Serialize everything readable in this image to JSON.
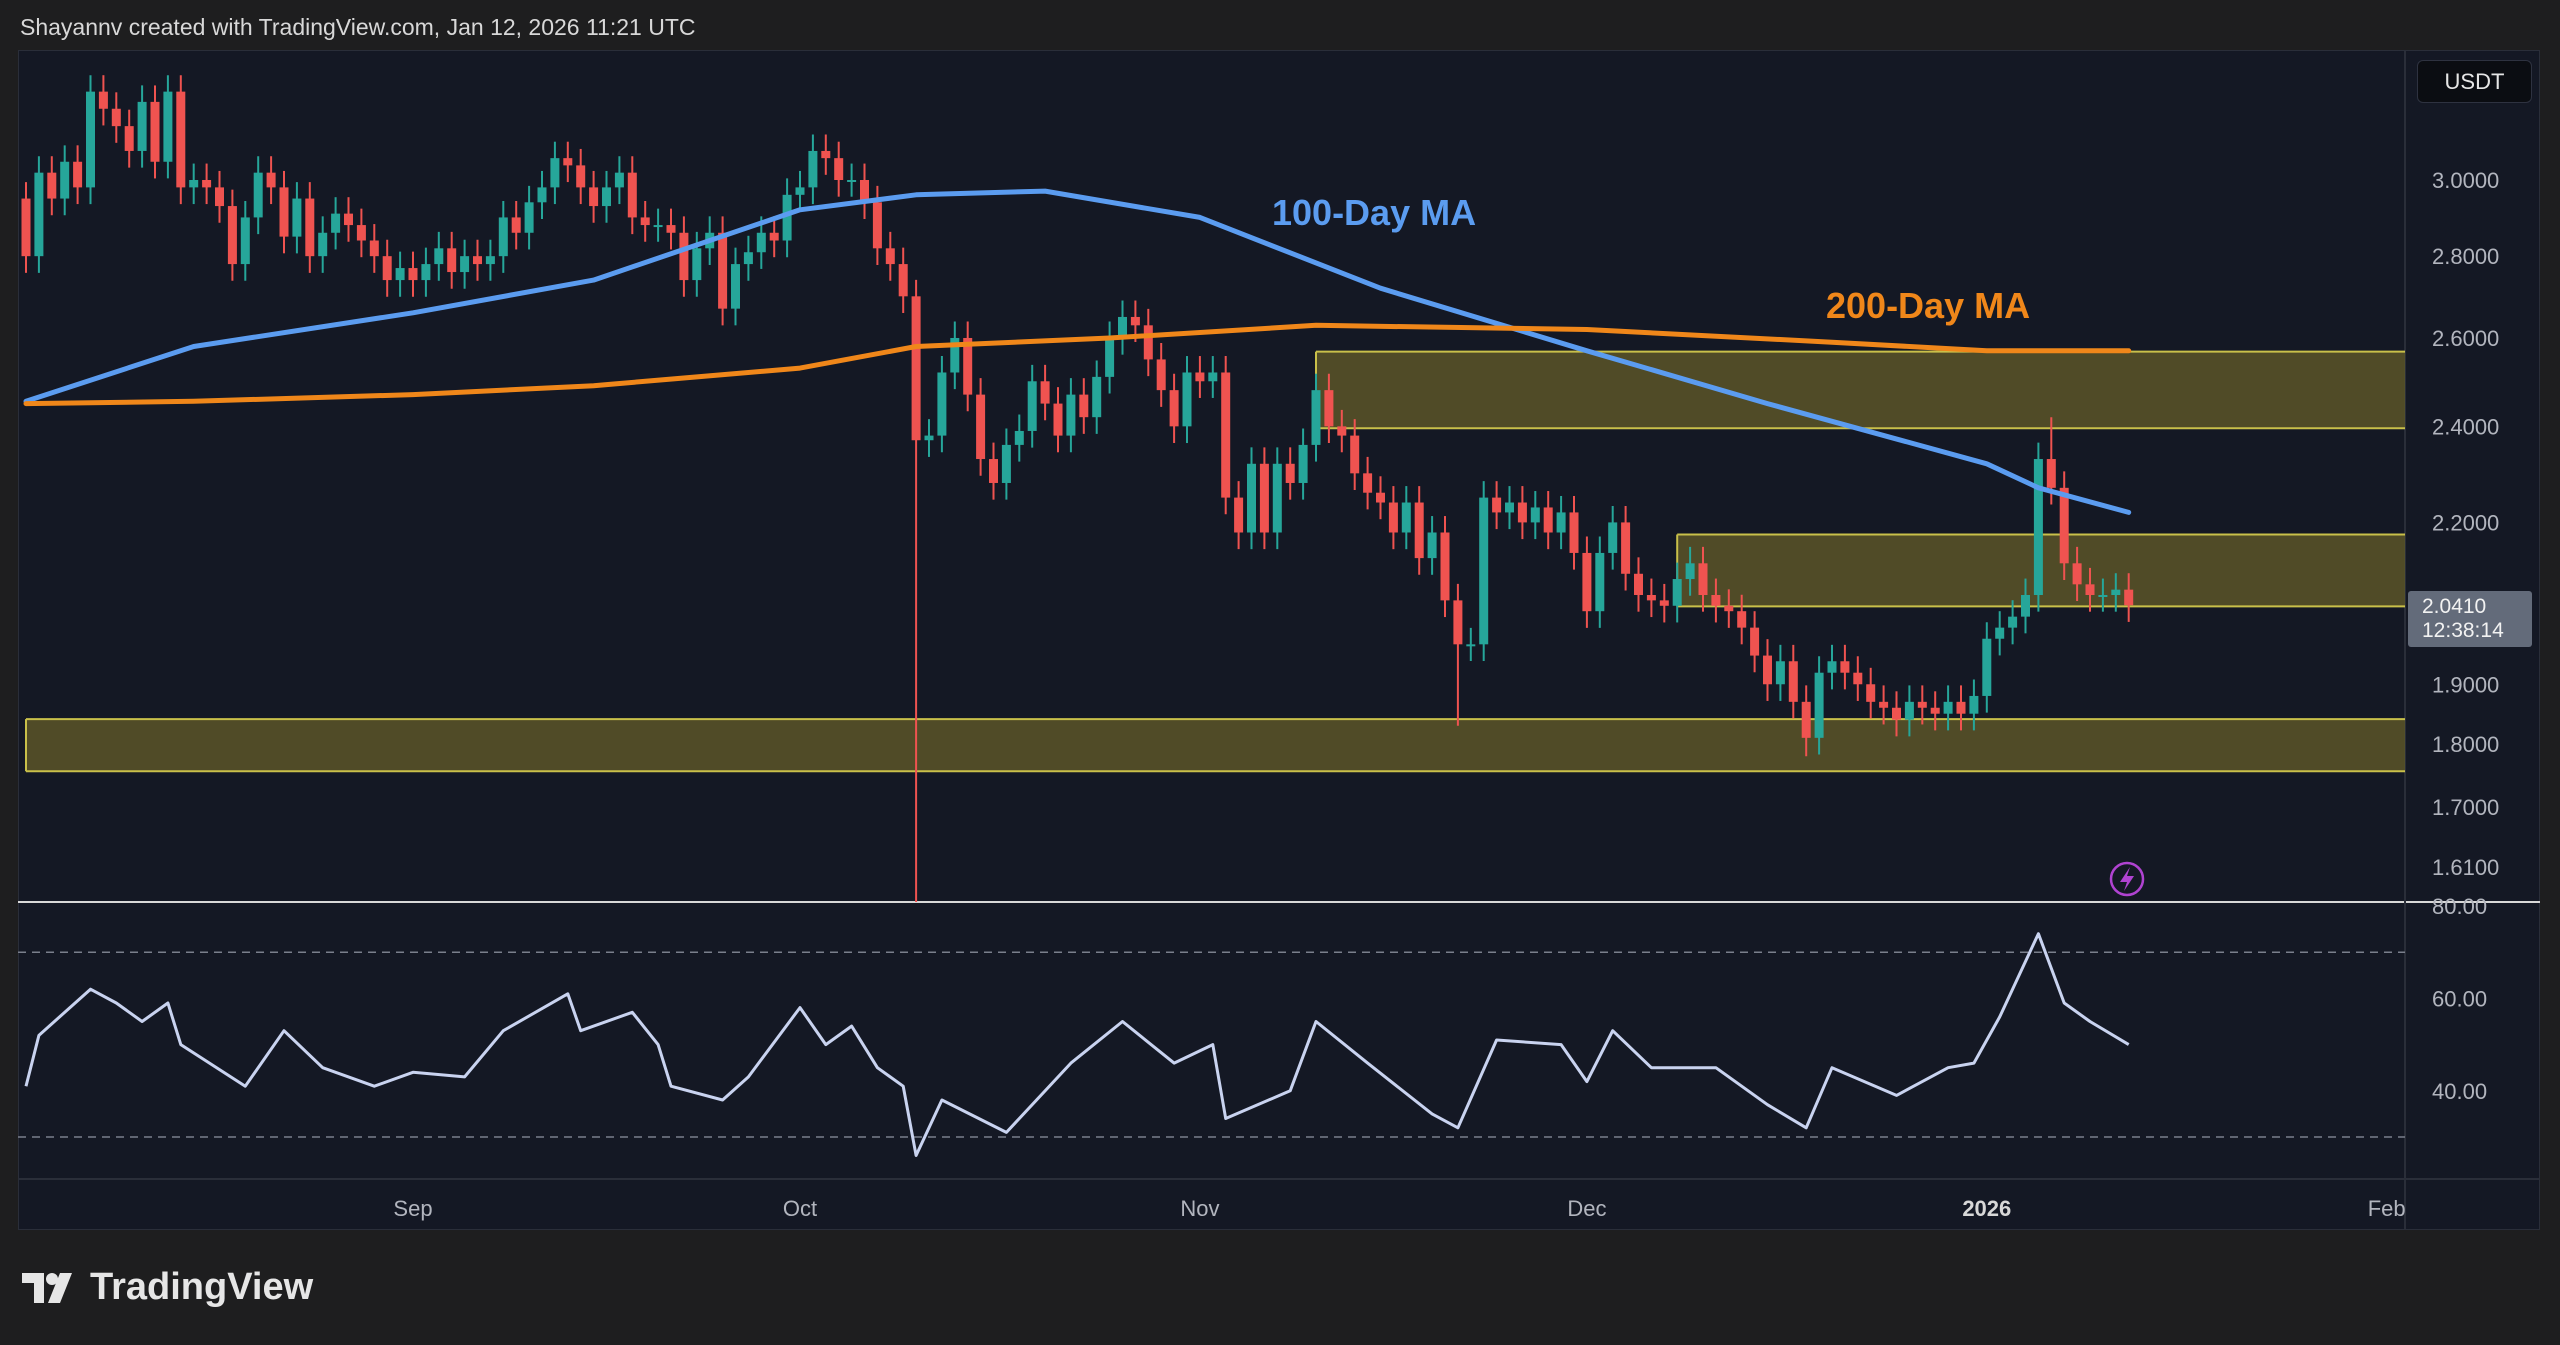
{
  "header": {
    "caption": "Shayannv created with TradingView.com, Jan 12, 2026 11:21 UTC"
  },
  "logo": {
    "text": "TradingView"
  },
  "price_axis": {
    "currency": "USDT",
    "ticks": [
      "3.0000",
      "2.8000",
      "2.6000",
      "2.4000",
      "2.2000",
      "1.9000",
      "1.8000",
      "1.7000",
      "1.6100"
    ],
    "current_price": "2.0410",
    "countdown": "12:38:14"
  },
  "rsi_axis": {
    "ticks": [
      "80.00",
      "60.00",
      "40.00"
    ]
  },
  "time_axis": {
    "ticks": [
      {
        "label": "Sep",
        "date": "2025-09-01"
      },
      {
        "label": "Oct",
        "date": "2025-10-01"
      },
      {
        "label": "Nov",
        "date": "2025-11-01"
      },
      {
        "label": "Dec",
        "date": "2025-12-01"
      },
      {
        "label": "2026",
        "date": "2026-01-01",
        "bold": true
      },
      {
        "label": "Feb",
        "date": "2026-02-01"
      }
    ]
  },
  "colors": {
    "up": "#26a69a",
    "down": "#ef5350",
    "ma100": "#5b9cf0",
    "ma200": "#f0871a",
    "zone_fill": "#5a5528",
    "zone_border": "#c9c04a",
    "rsi": "#c9d3f0",
    "background": "#141824"
  },
  "icons": {
    "alert": "lightning-icon"
  },
  "chart_data": [
    {
      "type": "candlestick",
      "scale": "log",
      "ylim": [
        1.55,
        3.35
      ],
      "months": [
        {
          "month": "2025-08",
          "first_day": 2,
          "first_open": 2.95,
          "closes": [
            2.8,
            3.02,
            2.95,
            3.05,
            2.98,
            3.25,
            3.2,
            3.15,
            3.08,
            3.22,
            3.05,
            3.25,
            2.98,
            3.0,
            2.98,
            2.93,
            2.78,
            2.9,
            3.02,
            2.98,
            2.85,
            2.95,
            2.8,
            2.86,
            2.91,
            2.88,
            2.84,
            2.8,
            2.74,
            2.77
          ]
        },
        {
          "month": "2025-09",
          "first_day": 1,
          "closes": [
            2.74,
            2.78,
            2.82,
            2.76,
            2.8,
            2.78,
            2.8,
            2.9,
            2.86,
            2.94,
            2.98,
            3.06,
            3.04,
            2.98,
            2.93,
            2.98,
            3.02,
            2.9,
            2.88,
            2.88,
            2.86,
            2.74,
            2.82,
            2.86,
            2.67,
            2.78,
            2.81,
            2.86,
            2.84,
            2.96
          ]
        },
        {
          "month": "2025-10",
          "first_day": 1,
          "closes": [
            2.98,
            3.08,
            3.06,
            3.0,
            3.0,
            2.94,
            2.82,
            2.78,
            2.7,
            2.37,
            2.38,
            2.52,
            2.6,
            2.47,
            2.33,
            2.28,
            2.36,
            2.39,
            2.5,
            2.45,
            2.38,
            2.47,
            2.42,
            2.51,
            2.6,
            2.65,
            2.63,
            2.55,
            2.48,
            2.4,
            2.52
          ]
        },
        {
          "month": "2025-11",
          "first_day": 1,
          "closes": [
            2.5,
            2.52,
            2.25,
            2.18,
            2.32,
            2.18,
            2.32,
            2.28,
            2.36,
            2.48,
            2.4,
            2.38,
            2.3,
            2.26,
            2.24,
            2.18,
            2.24,
            2.13,
            2.18,
            2.05,
            1.97,
            1.97,
            2.25,
            2.22,
            2.24,
            2.2,
            2.23,
            2.18,
            2.22,
            2.14
          ]
        },
        {
          "month": "2025-12",
          "first_day": 1,
          "closes": [
            2.03,
            2.14,
            2.2,
            2.1,
            2.06,
            2.05,
            2.04,
            2.09,
            2.12,
            2.06,
            2.04,
            2.03,
            2.0,
            1.95,
            1.9,
            1.94,
            1.87,
            1.81,
            1.92,
            1.94,
            1.92,
            1.9,
            1.87,
            1.86,
            1.84,
            1.87,
            1.86,
            1.85,
            1.87,
            1.85,
            1.88
          ]
        },
        {
          "month": "2026-01",
          "first_day": 1,
          "closes": [
            1.98,
            2.0,
            2.02,
            2.06,
            2.33,
            2.27,
            2.12,
            2.08,
            2.06,
            2.06,
            2.07,
            2.041
          ]
        }
      ],
      "wicks": [
        {
          "date": "2025-10-10",
          "low": 1.55
        },
        {
          "date": "2025-11-21",
          "low": 1.83
        },
        {
          "date": "2025-12-18",
          "low": 1.78
        },
        {
          "date": "2026-01-06",
          "high": 2.42
        }
      ],
      "series": [
        {
          "name": "100-Day MA",
          "points": [
            [
              "2025-08-02",
              2.455
            ],
            [
              "2025-08-15",
              2.58
            ],
            [
              "2025-09-01",
              2.66
            ],
            [
              "2025-09-15",
              2.74
            ],
            [
              "2025-10-01",
              2.92
            ],
            [
              "2025-10-10",
              2.96
            ],
            [
              "2025-10-20",
              2.97
            ],
            [
              "2025-11-01",
              2.9
            ],
            [
              "2025-11-15",
              2.72
            ],
            [
              "2025-12-01",
              2.57
            ],
            [
              "2025-12-15",
              2.45
            ],
            [
              "2026-01-01",
              2.32
            ],
            [
              "2026-01-05",
              2.27
            ],
            [
              "2026-01-12",
              2.22
            ]
          ]
        },
        {
          "name": "200-Day MA",
          "points": [
            [
              "2025-08-02",
              2.45
            ],
            [
              "2025-08-15",
              2.455
            ],
            [
              "2025-09-01",
              2.47
            ],
            [
              "2025-09-15",
              2.49
            ],
            [
              "2025-10-01",
              2.53
            ],
            [
              "2025-10-10",
              2.58
            ],
            [
              "2025-10-25",
              2.6
            ],
            [
              "2025-11-10",
              2.63
            ],
            [
              "2025-12-01",
              2.62
            ],
            [
              "2025-12-20",
              2.59
            ],
            [
              "2026-01-01",
              2.57
            ],
            [
              "2026-01-12",
              2.57
            ]
          ]
        }
      ],
      "zones": [
        {
          "from": "2025-11-10",
          "low": 2.396,
          "high": 2.568
        },
        {
          "from": "2025-12-08",
          "low": 2.039,
          "high": 2.176
        },
        {
          "from": "2025-08-02",
          "low": 1.756,
          "high": 1.841
        }
      ]
    },
    {
      "type": "line",
      "ylim": [
        25,
        80
      ],
      "reference_lines": [
        70,
        30
      ],
      "points": [
        [
          "2025-08-02",
          41
        ],
        [
          "2025-08-03",
          52
        ],
        [
          "2025-08-07",
          62
        ],
        [
          "2025-08-09",
          59
        ],
        [
          "2025-08-11",
          55
        ],
        [
          "2025-08-13",
          59
        ],
        [
          "2025-08-14",
          50
        ],
        [
          "2025-08-19",
          41
        ],
        [
          "2025-08-22",
          53
        ],
        [
          "2025-08-25",
          45
        ],
        [
          "2025-08-29",
          41
        ],
        [
          "2025-09-01",
          44
        ],
        [
          "2025-09-05",
          43
        ],
        [
          "2025-09-08",
          53
        ],
        [
          "2025-09-13",
          61
        ],
        [
          "2025-09-14",
          53
        ],
        [
          "2025-09-18",
          57
        ],
        [
          "2025-09-20",
          50
        ],
        [
          "2025-09-21",
          41
        ],
        [
          "2025-09-25",
          38
        ],
        [
          "2025-09-27",
          43
        ],
        [
          "2025-10-01",
          58
        ],
        [
          "2025-10-03",
          50
        ],
        [
          "2025-10-05",
          54
        ],
        [
          "2025-10-07",
          45
        ],
        [
          "2025-10-09",
          41
        ],
        [
          "2025-10-10",
          26
        ],
        [
          "2025-10-12",
          38
        ],
        [
          "2025-10-17",
          31
        ],
        [
          "2025-10-22",
          46
        ],
        [
          "2025-10-26",
          55
        ],
        [
          "2025-10-30",
          46
        ],
        [
          "2025-11-02",
          50
        ],
        [
          "2025-11-03",
          34
        ],
        [
          "2025-11-08",
          40
        ],
        [
          "2025-11-10",
          55
        ],
        [
          "2025-11-14",
          46
        ],
        [
          "2025-11-19",
          35
        ],
        [
          "2025-11-21",
          32
        ],
        [
          "2025-11-24",
          51
        ],
        [
          "2025-11-29",
          50
        ],
        [
          "2025-12-01",
          42
        ],
        [
          "2025-12-03",
          53
        ],
        [
          "2025-12-06",
          45
        ],
        [
          "2025-12-11",
          45
        ],
        [
          "2025-12-15",
          37
        ],
        [
          "2025-12-18",
          32
        ],
        [
          "2025-12-20",
          45
        ],
        [
          "2025-12-25",
          39
        ],
        [
          "2025-12-29",
          45
        ],
        [
          "2025-12-31",
          46
        ],
        [
          "2026-01-02",
          56
        ],
        [
          "2026-01-05",
          74
        ],
        [
          "2026-01-07",
          59
        ],
        [
          "2026-01-09",
          55
        ],
        [
          "2026-01-12",
          50
        ]
      ]
    }
  ]
}
